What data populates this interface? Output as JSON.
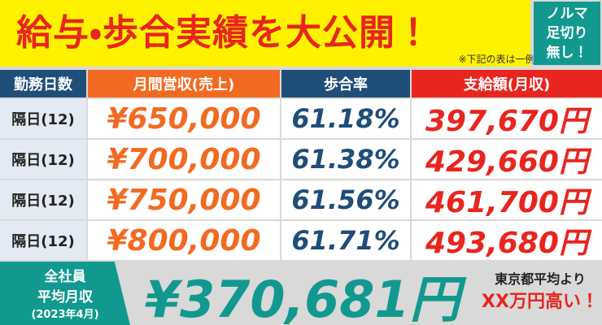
{
  "header": {
    "title": "給与・歩合実績を大公開！",
    "note": "※下記の表は一例となります。",
    "badge": [
      "ノルマ",
      "足切り",
      "無し！"
    ]
  },
  "table": {
    "columns": [
      "勤務日数",
      "月間営収(売上)",
      "歩合率",
      "支給額(月収)"
    ],
    "rows": [
      [
        "隔日(12)",
        "¥650,000",
        "61.18%",
        "397,670円"
      ],
      [
        "隔日(12)",
        "¥700,000",
        "61.38%",
        "429,660円"
      ],
      [
        "隔日(12)",
        "¥750,000",
        "61.56%",
        "461,700円"
      ],
      [
        "隔日(12)",
        "¥800,000",
        "61.71%",
        "493,680円"
      ]
    ]
  },
  "footer": {
    "label": [
      "全社員",
      "平均月収",
      "(2023年4月)"
    ],
    "amount": "¥370,681円",
    "comparison": [
      "東京都平均より",
      "XX万円高い！"
    ]
  }
}
